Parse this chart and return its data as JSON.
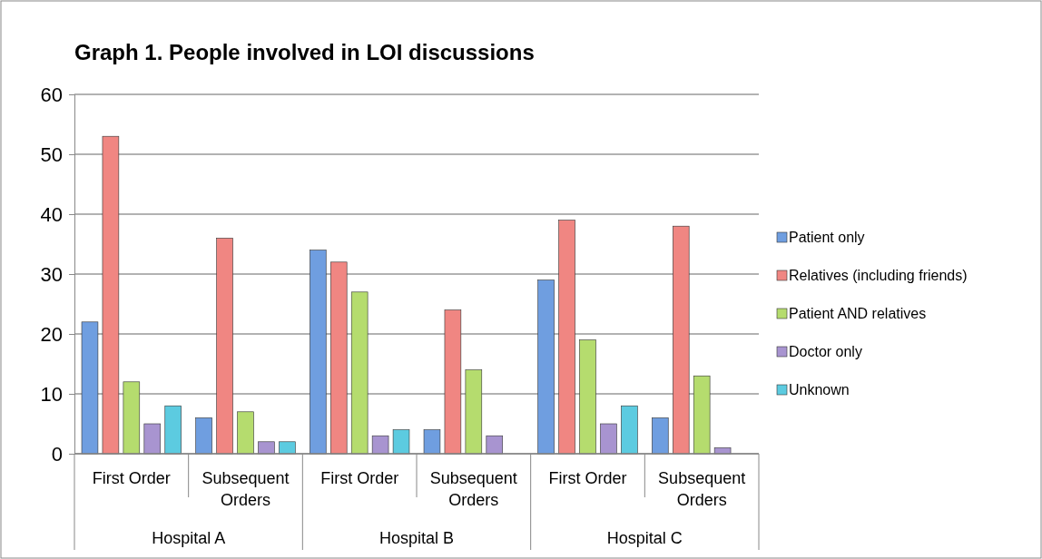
{
  "chart_data": {
    "type": "bar",
    "title": "Graph 1. People involved in LOI discussions",
    "categories": [
      "First Order",
      "Subsequent Orders",
      "First Order",
      "Subsequent Orders",
      "First Order",
      "Subsequent Orders"
    ],
    "annotations": [
      "Hospital A",
      "Hospital B",
      "Hospital C"
    ],
    "series": [
      {
        "name": "Patient only",
        "color": "#6f9ee0",
        "values": [
          22,
          6,
          34,
          4,
          29,
          6
        ]
      },
      {
        "name": "Relatives (including friends)",
        "color": "#f08682",
        "values": [
          53,
          36,
          32,
          24,
          39,
          38
        ]
      },
      {
        "name": "Patient AND relatives",
        "color": "#b5dc6e",
        "values": [
          12,
          7,
          27,
          14,
          19,
          13
        ]
      },
      {
        "name": "Doctor only",
        "color": "#a894d0",
        "values": [
          5,
          2,
          3,
          3,
          5,
          1
        ]
      },
      {
        "name": "Unknown",
        "color": "#5ccbe0",
        "values": [
          8,
          2,
          4,
          0,
          8,
          0
        ]
      }
    ],
    "ylim": [
      0,
      60
    ],
    "yticks": [
      0,
      10,
      20,
      30,
      40,
      50,
      60
    ],
    "grid": "y",
    "legend": "right"
  }
}
